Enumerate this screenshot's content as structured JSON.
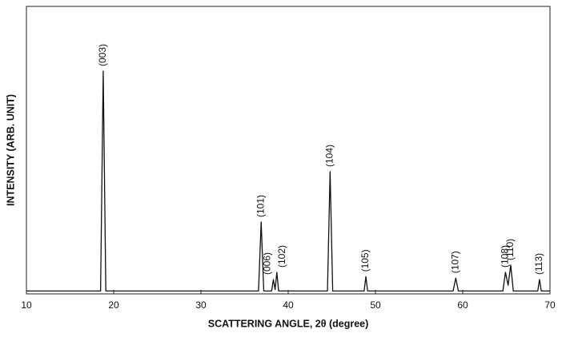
{
  "chart_data": {
    "type": "line",
    "x_label": "SCATTERING ANGLE, 2θ (degree)",
    "y_label": "INTENSITY (ARB. UNIT)",
    "x": [
      10,
      18.5,
      18.8,
      19.1,
      36.6,
      36.9,
      37.2,
      38.1,
      38.3,
      38.5,
      38.7,
      38.9,
      44.5,
      44.8,
      45.1,
      48.7,
      48.9,
      49.1,
      58.9,
      59.2,
      59.5,
      64.6,
      64.9,
      65.2,
      65.5,
      65.8,
      68.6,
      68.8,
      69.0,
      70
    ],
    "values": [
      1,
      1,
      77.5,
      1,
      1,
      25,
      1,
      1,
      5,
      1.5,
      7.5,
      1,
      1,
      42.5,
      1,
      1,
      6,
      1,
      1,
      5.5,
      1,
      1,
      7.5,
      3,
      10,
      1,
      1,
      5,
      1,
      1
    ],
    "color": "#111111",
    "xlim": [
      10,
      70
    ],
    "xticks": [
      10,
      20,
      30,
      40,
      50,
      60,
      70
    ],
    "ylim": [
      0,
      100
    ],
    "annotations": [
      {
        "text": "(003)",
        "x": 18.8,
        "y": 77.5
      },
      {
        "text": "(101)",
        "x": 36.9,
        "y": 25
      },
      {
        "text": "(006)",
        "x": 38.3,
        "y": 5
      },
      {
        "text": "(102)",
        "x": 38.7,
        "y": 7.5
      },
      {
        "text": "(104)",
        "x": 44.8,
        "y": 42.5
      },
      {
        "text": "(105)",
        "x": 48.9,
        "y": 6
      },
      {
        "text": "(107)",
        "x": 59.2,
        "y": 5.5
      },
      {
        "text": "(108)",
        "x": 64.9,
        "y": 7.5
      },
      {
        "text": "(110)",
        "x": 65.5,
        "y": 10
      },
      {
        "text": "(113)",
        "x": 68.8,
        "y": 5
      }
    ]
  }
}
